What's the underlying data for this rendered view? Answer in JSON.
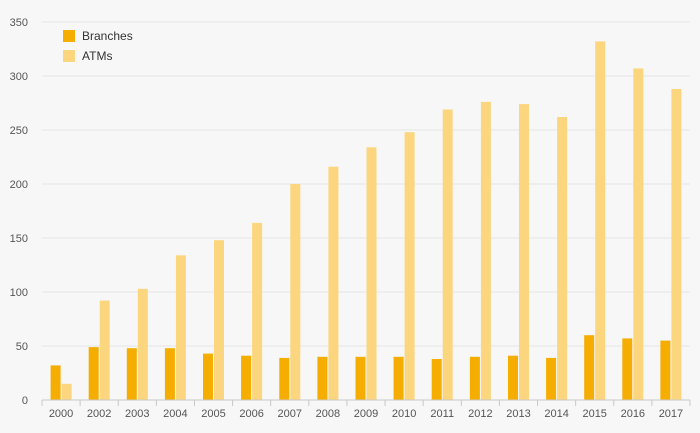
{
  "chart_data": {
    "type": "bar",
    "categories": [
      "2000",
      "2002",
      "2003",
      "2004",
      "2005",
      "2006",
      "2007",
      "2008",
      "2009",
      "2010",
      "2011",
      "2012",
      "2013",
      "2014",
      "2015",
      "2016",
      "2017"
    ],
    "series": [
      {
        "name": "Branches",
        "color": "#f5ad00",
        "values": [
          32,
          49,
          48,
          48,
          43,
          41,
          39,
          40,
          40,
          40,
          38,
          40,
          41,
          39,
          60,
          57,
          55
        ]
      },
      {
        "name": "ATMs",
        "color": "#fcd67f",
        "values": [
          15,
          92,
          103,
          134,
          148,
          164,
          200,
          216,
          234,
          248,
          269,
          276,
          274,
          262,
          332,
          307,
          288
        ]
      }
    ],
    "ylim": [
      0,
      350
    ],
    "yticks": [
      0,
      50,
      100,
      150,
      200,
      250,
      300,
      350
    ],
    "grid": true,
    "legend_position": "top-left"
  }
}
